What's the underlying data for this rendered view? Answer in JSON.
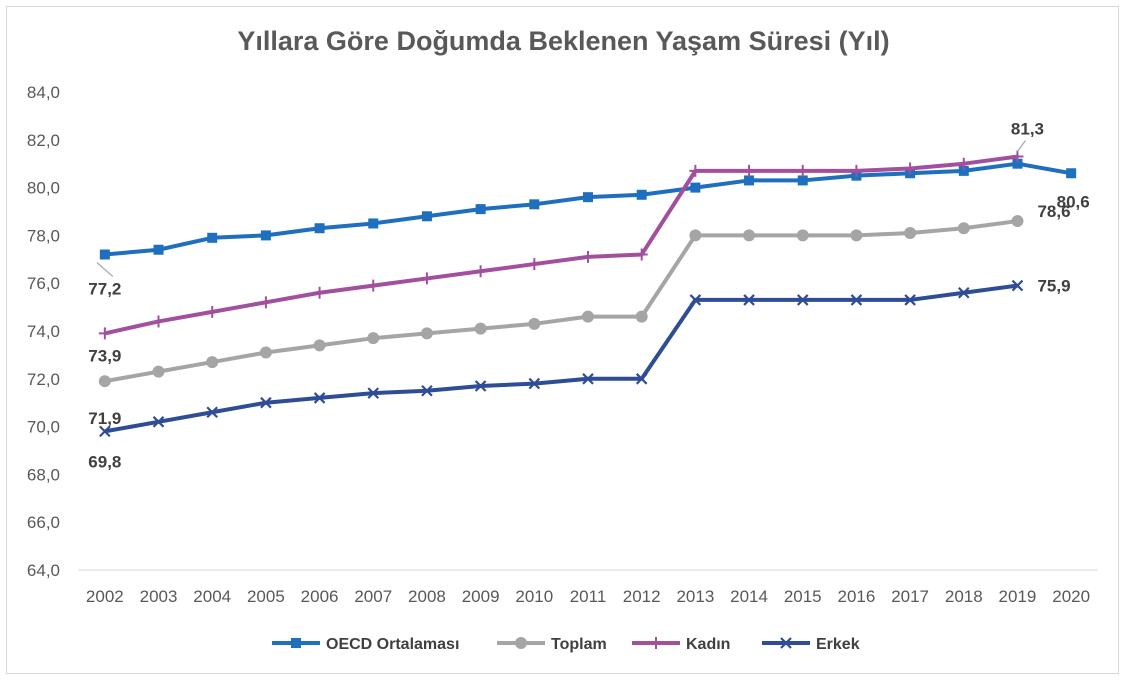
{
  "chart_data": {
    "type": "line",
    "title": "Yıllara Göre Doğumda Beklenen Yaşam Süresi (Yıl)",
    "xlabel": "",
    "ylabel": "",
    "ylim": [
      64,
      84
    ],
    "y_ticks": [
      "64,0",
      "66,0",
      "68,0",
      "70,0",
      "72,0",
      "74,0",
      "76,0",
      "78,0",
      "80,0",
      "82,0",
      "84,0"
    ],
    "grid": false,
    "legend_position": "bottom",
    "categories": [
      "2002",
      "2003",
      "2004",
      "2005",
      "2006",
      "2007",
      "2008",
      "2009",
      "2010",
      "2011",
      "2012",
      "2013",
      "2014",
      "2015",
      "2016",
      "2017",
      "2018",
      "2019",
      "2020"
    ],
    "series": [
      {
        "name": "OECD Ortalaması",
        "color": "#1f6fbf",
        "marker": "square",
        "values": [
          77.2,
          77.4,
          77.9,
          78.0,
          78.3,
          78.5,
          78.8,
          79.1,
          79.3,
          79.6,
          79.7,
          80.0,
          80.3,
          80.3,
          80.5,
          80.6,
          80.7,
          81.0,
          80.6
        ]
      },
      {
        "name": "Toplam",
        "color": "#a5a5a5",
        "marker": "circle",
        "values": [
          71.9,
          72.3,
          72.7,
          73.1,
          73.4,
          73.7,
          73.9,
          74.1,
          74.3,
          74.6,
          74.6,
          78.0,
          78.0,
          78.0,
          78.0,
          78.1,
          78.3,
          78.6,
          null
        ]
      },
      {
        "name": "Kadın",
        "color": "#a24f9e",
        "marker": "plus",
        "values": [
          73.9,
          74.4,
          74.8,
          75.2,
          75.6,
          75.9,
          76.2,
          76.5,
          76.8,
          77.1,
          77.2,
          80.7,
          80.7,
          80.7,
          80.7,
          80.8,
          81.0,
          81.3,
          null
        ]
      },
      {
        "name": "Erkek",
        "color": "#2e4d96",
        "marker": "x",
        "values": [
          69.8,
          70.2,
          70.6,
          71.0,
          71.2,
          71.4,
          71.5,
          71.7,
          71.8,
          72.0,
          72.0,
          75.3,
          75.3,
          75.3,
          75.3,
          75.3,
          75.6,
          75.9,
          null
        ]
      }
    ],
    "data_labels": [
      {
        "series": "OECD Ortalaması",
        "category": "2002",
        "text": "77,2",
        "leader": true
      },
      {
        "series": "Kadın",
        "category": "2002",
        "text": "73,9"
      },
      {
        "series": "Toplam",
        "category": "2002",
        "text": "71,9"
      },
      {
        "series": "Erkek",
        "category": "2002",
        "text": "69,8"
      },
      {
        "series": "Kadın",
        "category": "2019",
        "text": "81,3",
        "leader": true
      },
      {
        "series": "OECD Ortalaması",
        "category": "2020",
        "text": "80,6"
      },
      {
        "series": "Toplam",
        "category": "2019",
        "text": "78,6"
      },
      {
        "series": "Erkek",
        "category": "2019",
        "text": "75,9"
      }
    ]
  }
}
